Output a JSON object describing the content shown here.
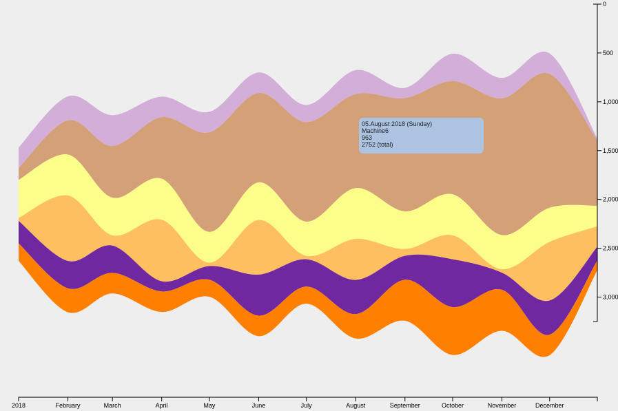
{
  "chart_data": {
    "type": "area",
    "subtype": "streamgraph",
    "x": [
      "2018-01-01",
      "2018-02-01",
      "2018-03-01",
      "2018-04-01",
      "2018-05-01",
      "2018-06-01",
      "2018-07-01",
      "2018-08-01",
      "2018-09-01",
      "2018-10-01",
      "2018-11-01",
      "2018-12-01",
      "2018-12-31"
    ],
    "x_tick_labels": [
      "2018",
      "February",
      "March",
      "April",
      "May",
      "June",
      "July",
      "August",
      "September",
      "October",
      "November",
      "December"
    ],
    "y_tick_labels": [
      "0",
      "500",
      "1,000",
      "1,500",
      "2,000",
      "2,500",
      "3,000"
    ],
    "y_ticks": [
      0,
      500,
      1000,
      1500,
      2000,
      2500,
      3000
    ],
    "ylim": [
      0,
      3250
    ],
    "y_axis_position": "right",
    "y_inverted": true,
    "grid": false,
    "series": [
      {
        "color": "#d2aed9",
        "values": [
          210,
          245,
          315,
          210,
          210,
          210,
          175,
          245,
          105,
          280,
          210,
          210,
          20
        ]
      },
      {
        "name": "Machine6",
        "color": "#d4a077",
        "values": [
          120,
          350,
          530,
          630,
          1020,
          915,
          1020,
          963,
          1160,
          1160,
          1400,
          1370,
          670
        ]
      },
      {
        "color": "#fdfd8a",
        "values": [
          390,
          420,
          385,
          420,
          315,
          385,
          350,
          520,
          385,
          420,
          350,
          350,
          210
        ]
      },
      {
        "color": "#fdbf60",
        "values": [
          30,
          670,
          105,
          630,
          35,
          560,
          35,
          420,
          70,
          245,
          35,
          600,
          210
        ]
      },
      {
        "color": "#7028a0",
        "values": [
          230,
          280,
          280,
          105,
          140,
          420,
          280,
          350,
          245,
          490,
          175,
          350,
          140
        ]
      },
      {
        "color": "#ff7f00",
        "values": [
          180,
          245,
          210,
          210,
          175,
          210,
          175,
          250,
          420,
          490,
          420,
          210,
          100
        ]
      }
    ]
  },
  "tooltip": {
    "date": "05.August 2018 (Sunday)",
    "series": "Machine6",
    "value": "963",
    "total": "2752 (total)"
  },
  "colors": {
    "background": "#eeeeee",
    "tooltip": "#adc3e2"
  }
}
